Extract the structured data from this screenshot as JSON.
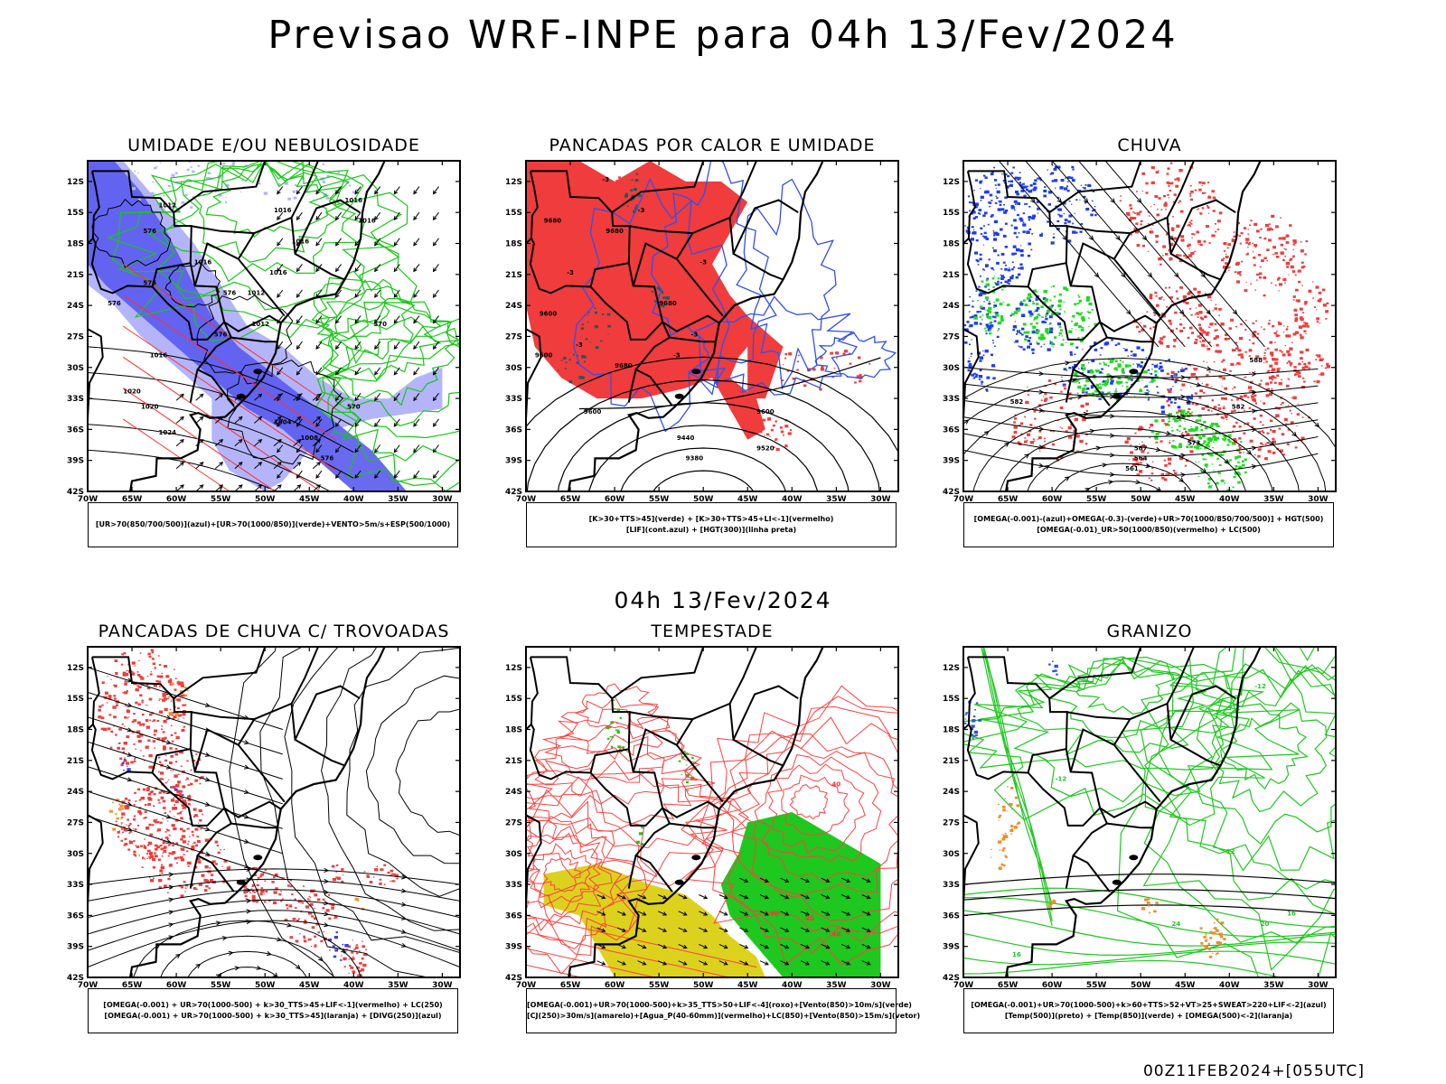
{
  "page": {
    "title": "Previsao WRF-INPE  para 04h 13/Fev/2024",
    "mid_title": "04h 13/Fev/2024",
    "footer": "00Z11FEB2024+[055UTC]"
  },
  "chart_data": [
    {
      "type": "map",
      "title": "UMIDADE E/OU NEBULOSIDADE",
      "xlabel": "",
      "ylabel": "",
      "xlim": [
        -70,
        -28
      ],
      "ylim": [
        -42,
        -10
      ],
      "xticks": [
        "70W",
        "65W",
        "60W",
        "55W",
        "50W",
        "45W",
        "40W",
        "35W",
        "30W"
      ],
      "yticks": [
        "12S",
        "15S",
        "18S",
        "21S",
        "24S",
        "27S",
        "30S",
        "33S",
        "36S",
        "39S",
        "42S"
      ],
      "legend": [
        "[UR>70(850/700/500)](azul)+[UR>70(1000/850)](verde)+VENTO>5m/s+ESP(500/1000)"
      ],
      "contour_labels": [
        "1016",
        "1016",
        "1016",
        "1012",
        "1016",
        "1016",
        "1012",
        "1012",
        "1016",
        "1020",
        "1020",
        "1024",
        "1016",
        "1008",
        "1004",
        "576",
        "576",
        "576",
        "570",
        "570",
        "576",
        "576",
        "576"
      ],
      "colors": {
        "fill_blue": "#5a5af0",
        "fill_lightblue": "#b4b4fa",
        "green": "#17c817",
        "red": "#ff3030"
      }
    },
    {
      "type": "map",
      "title": "PANCADAS POR CALOR E UMIDADE",
      "xlim": [
        -70,
        -28
      ],
      "ylim": [
        -42,
        -10
      ],
      "xticks": [
        "70W",
        "65W",
        "60W",
        "55W",
        "50W",
        "45W",
        "40W",
        "35W",
        "30W"
      ],
      "yticks": [
        "12S",
        "15S",
        "18S",
        "21S",
        "24S",
        "27S",
        "30S",
        "33S",
        "36S",
        "39S",
        "42S"
      ],
      "legend": [
        "[K>30+TTS>45](verde) + [K>30+TTS>45+LI<-1](vermelho)",
        "[LIF](cont.azul) + [HGT(300)](linha preta)"
      ],
      "contour_labels": [
        "9680",
        "9680",
        "9680",
        "9600",
        "9600",
        "9680",
        "9600",
        "9600",
        "9440",
        "9380",
        "9520",
        "-3",
        "-3",
        "-3",
        "-3",
        "-3",
        "-3",
        "-3"
      ],
      "colors": {
        "fill_red": "#f03c3c",
        "fill_teal": "#235a5a",
        "blue": "#3050f0"
      }
    },
    {
      "type": "map",
      "title": "CHUVA",
      "xlim": [
        -70,
        -28
      ],
      "ylim": [
        -42,
        -10
      ],
      "xticks": [
        "70W",
        "65W",
        "60W",
        "55W",
        "50W",
        "45W",
        "40W",
        "35W",
        "30W"
      ],
      "yticks": [
        "12S",
        "15S",
        "18S",
        "21S",
        "24S",
        "27S",
        "30S",
        "33S",
        "36S",
        "39S",
        "42S"
      ],
      "legend": [
        "[OMEGA(-0.001)-(azul)+OMEGA(-0.3)-(verde)+UR>70(1000/850/700/500)] + HGT(500)",
        "[OMEGA(-0.01)_UR>50(1000/850)(vermelho) + LC(500)"
      ],
      "contour_labels": [
        "588",
        "582",
        "582",
        "567",
        "564",
        "561",
        "573"
      ],
      "colors": {
        "fill_red": "#f03c3c",
        "fill_blue": "#1e3cf0",
        "fill_green": "#1edc1e"
      }
    },
    {
      "type": "map",
      "title": "PANCADAS DE CHUVA C/ TROVOADAS",
      "xlim": [
        -70,
        -28
      ],
      "ylim": [
        -42,
        -10
      ],
      "xticks": [
        "70W",
        "65W",
        "60W",
        "55W",
        "50W",
        "45W",
        "40W",
        "35W",
        "30W"
      ],
      "yticks": [
        "12S",
        "15S",
        "18S",
        "21S",
        "24S",
        "27S",
        "30S",
        "33S",
        "36S",
        "39S",
        "42S"
      ],
      "legend": [
        "[OMEGA(-0.001) + UR>70(1000-500) + k>30_TTS>45+LIF<-1](vermelho) + LC(250)",
        "[OMEGA(-0.001) + UR>70(1000-500) + k>30_TTS>45](laranja) + [DIVG(250)](azul)"
      ],
      "contour_labels": [],
      "colors": {
        "fill_red": "#f03c3c",
        "fill_orange": "#f09632",
        "fill_blue": "#3c3cf0"
      }
    },
    {
      "type": "map",
      "title": "TEMPESTADE",
      "xlim": [
        -70,
        -28
      ],
      "ylim": [
        -42,
        -10
      ],
      "xticks": [
        "70W",
        "65W",
        "60W",
        "55W",
        "50W",
        "45W",
        "40W",
        "35W",
        "30W"
      ],
      "yticks": [
        "12S",
        "15S",
        "18S",
        "21S",
        "24S",
        "27S",
        "30S",
        "33S",
        "36S",
        "39S",
        "42S"
      ],
      "legend": [
        "[OMEGA(-0.001)+UR>70(1000-500)+k>35_TTS>50+LIF<-4](roxo)+[Vento(850)>10m/s](verde)",
        "[CJ(250)>30m/s](amarelo)+[Agua_P(40-60mm)](vermelho)+LC(850)+[Vento(850)>15m/s](vetor)"
      ],
      "contour_labels": [
        "40",
        "40",
        "40",
        "40"
      ],
      "colors": {
        "fill_yellow": "#dcd21e",
        "fill_green": "#1ec81e",
        "red": "#ff4040"
      }
    },
    {
      "type": "map",
      "title": "GRANIZO",
      "xlim": [
        -70,
        -28
      ],
      "ylim": [
        -42,
        -10
      ],
      "xticks": [
        "70W",
        "65W",
        "60W",
        "55W",
        "50W",
        "45W",
        "40W",
        "35W",
        "30W"
      ],
      "yticks": [
        "12S",
        "15S",
        "18S",
        "21S",
        "24S",
        "27S",
        "30S",
        "33S",
        "36S",
        "39S",
        "42S"
      ],
      "legend": [
        "[OMEGA(-0.001)+UR>70(1000-500)+k>60+TTS>52+VT>25+SWEAT>220+LIF<-2](azul)",
        "[Temp(500)](preto) + [Temp(850)](verde) + [OMEGA(500)<-2](laranja)"
      ],
      "contour_labels": [
        "-12",
        "-12",
        "16",
        "20",
        "24",
        "16",
        "-12"
      ],
      "colors": {
        "green": "#1ec81e",
        "orange": "#f08c28",
        "blue": "#2850f0"
      }
    }
  ]
}
